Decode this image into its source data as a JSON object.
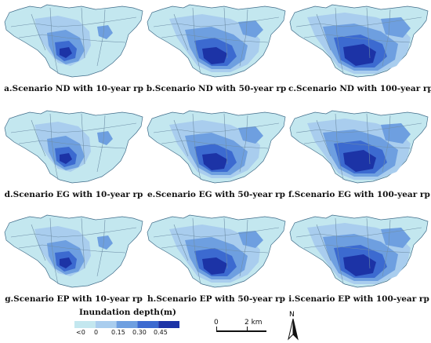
{
  "panels": [
    {
      "caption": "a.Scenario ND with 10-year rp"
    },
    {
      "caption": "b.Scenario ND with 50-year rp"
    },
    {
      "caption": "c.Scenario ND with 100-year rp"
    },
    {
      "caption": "d.Scenario EG with 10-year rp"
    },
    {
      "caption": "e.Scenario EG with 50-year rp"
    },
    {
      "caption": "f.Scenario EG with 100-year rp"
    },
    {
      "caption": "g.Scenario EP with 10-year rp"
    },
    {
      "caption": "h.Scenario EP with 50-year rp"
    },
    {
      "caption": "i.Scenario EP with 100-year rp"
    }
  ],
  "legend": {
    "title": "Inundation depth(m)",
    "classes": [
      {
        "color": "#c3e7ef"
      },
      {
        "color": "#a9cdee"
      },
      {
        "color": "#6e9fe0"
      },
      {
        "color": "#3c6ad0"
      },
      {
        "color": "#1c33a6"
      }
    ],
    "ticks": [
      "<0",
      "0",
      "0.15",
      "0.30",
      "0.45"
    ]
  },
  "scalebar": {
    "zero": "0",
    "distance": "2 km"
  },
  "north": {
    "letter": "N"
  }
}
